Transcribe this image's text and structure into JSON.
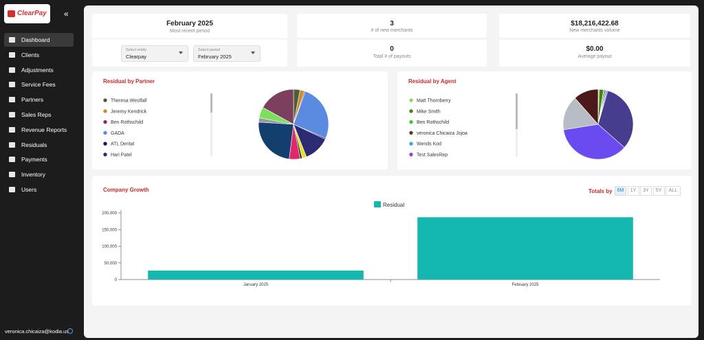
{
  "sidebar": {
    "logo": "ClearPay",
    "nav": [
      "Dashboard",
      "Clients",
      "Adjustments",
      "Service Fees",
      "Partners",
      "Sales Reps",
      "Revenue Reports",
      "Residuals",
      "Payments",
      "Inventory",
      "Users"
    ],
    "active": "Dashboard",
    "user": "veronica.chicaiza@kodia.us"
  },
  "period_card": {
    "title": "February 2025",
    "subtitle": "Most recent period",
    "entity_label": "Select entity",
    "entity_value": "Clearpay",
    "period_label": "Select period",
    "period_value": "February 2025"
  },
  "stats": [
    {
      "value": "3",
      "label": "# of new merchants"
    },
    {
      "value": "$18,216,422.68",
      "label": "New merchants volume"
    },
    {
      "value": "0",
      "label": "Total # of payouts"
    },
    {
      "value": "$0.00",
      "label": "Average payout"
    }
  ],
  "residual_by_partner": {
    "type": "pie",
    "title": "Residual by Partner",
    "categories": [
      "Theresa Westfall",
      "Jeremy Kendrick",
      "Ben Rothschild",
      "GADA",
      "ATL Dental",
      "Hari Patel",
      null,
      null,
      null,
      null,
      null,
      null,
      null
    ],
    "values": [
      3,
      2,
      0.5,
      26,
      0.5,
      12,
      2,
      1,
      5,
      24,
      2,
      5,
      17
    ],
    "colors": [
      "#4b5e3a",
      "#c98b2b",
      "#8e2a6b",
      "#5b8be0",
      "#17175a",
      "#2b2a72",
      "#e3e322",
      "#333333",
      "#e0286a",
      "#123f6e",
      "#9a9a9a",
      "#7be05a",
      "#7d3f5e"
    ]
  },
  "residual_by_agent": {
    "type": "pie",
    "title": "Residual by Agent",
    "categories": [
      "Matt Thornberry",
      "Mike Smith",
      "Ben Rothschild",
      "veronica Chicaiza Jojoa",
      "Wends Kod",
      "Test SalesRep",
      null,
      null,
      null,
      null
    ],
    "values": [
      0.5,
      2,
      0.5,
      0.5,
      0.5,
      0.5,
      32,
      36,
      16,
      11.5
    ],
    "colors": [
      "#8fd86a",
      "#4e7d1e",
      "#2ecc2e",
      "#5a3a1e",
      "#40a8c8",
      "#9b3fc8",
      "#463d8e",
      "#6a4bf0",
      "#b8bcc4",
      "#4a1a1a"
    ]
  },
  "company_growth": {
    "type": "bar",
    "title": "Company Growth",
    "totals_by_label": "Totals by",
    "ranges": [
      "6M",
      "1Y",
      "3Y",
      "5Y",
      "ALL"
    ],
    "active_range": "6M",
    "categories": [
      "January 2025",
      "February 2025"
    ],
    "series": [
      {
        "name": "Residual",
        "color": "#14b8b0",
        "values": [
          27000,
          187000
        ]
      }
    ],
    "ylim": [
      0,
      200000
    ],
    "yticks": [
      0,
      {
        "value": 50000,
        "label": "50,000"
      },
      {
        "value": 100000,
        "label": "100,000"
      },
      {
        "value": 150000,
        "label": "150,000"
      },
      {
        "value": 200000,
        "label": "200,000"
      }
    ]
  }
}
